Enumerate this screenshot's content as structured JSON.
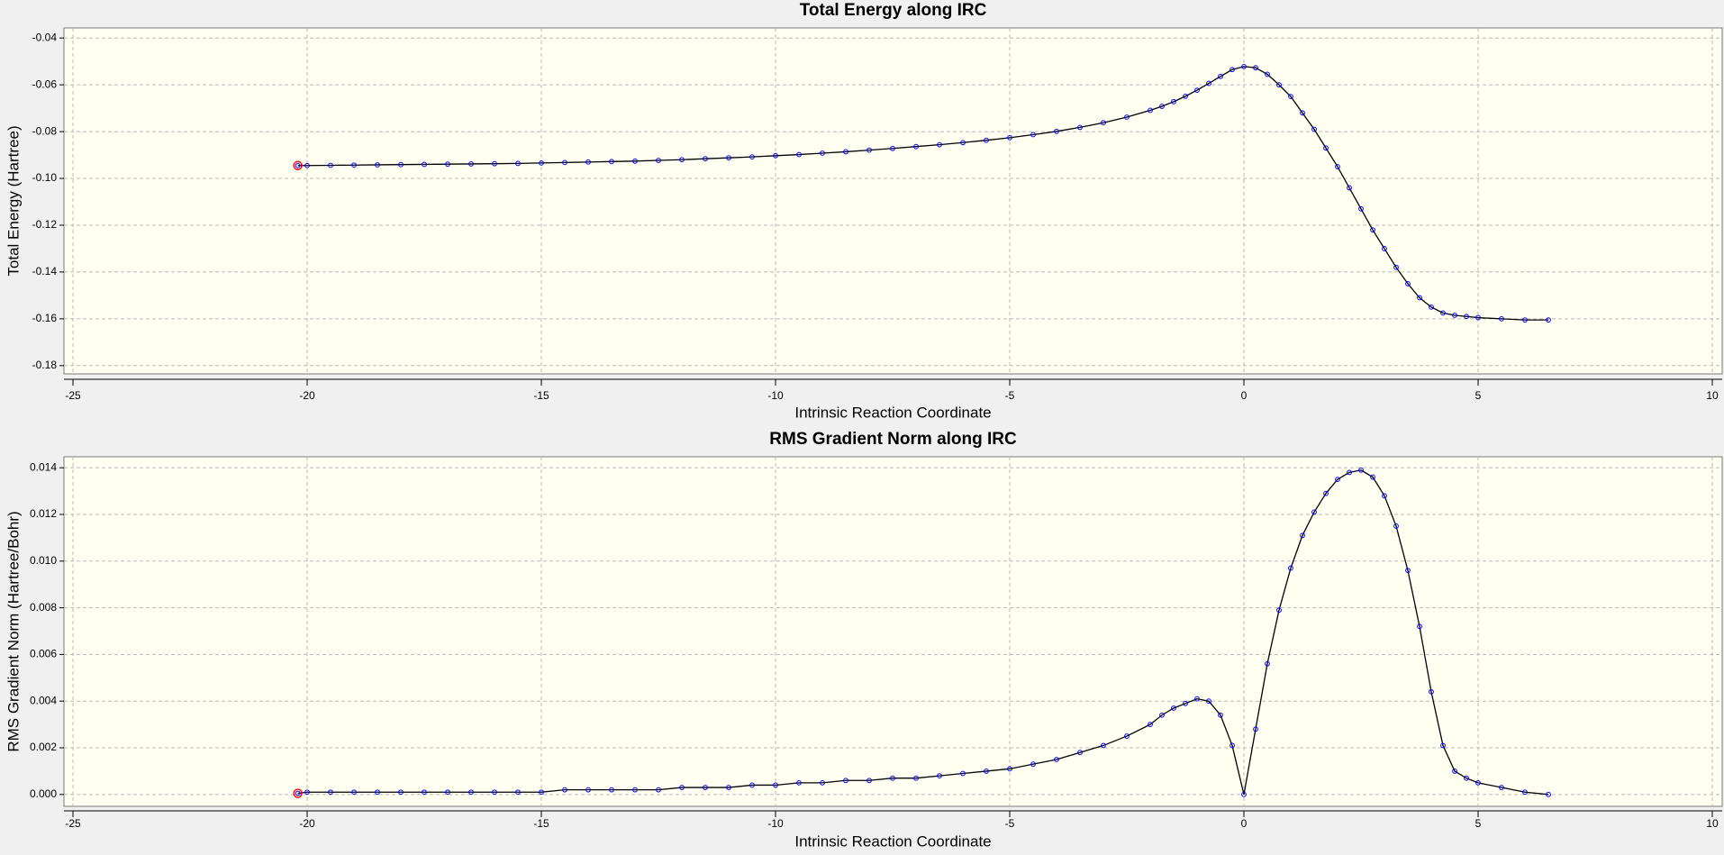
{
  "chart_data": [
    {
      "type": "line",
      "title": "Total Energy along IRC",
      "x_label": "Intrinsic Reaction Coordinate",
      "y_label": "Total Energy (Hartree)",
      "x": [
        -20.2,
        -20,
        -19.5,
        -19,
        -18.5,
        -18,
        -17.5,
        -17,
        -16.5,
        -16,
        -15.5,
        -15,
        -14.5,
        -14,
        -13.5,
        -13,
        -12.5,
        -12,
        -11.5,
        -11,
        -10.5,
        -10,
        -9.5,
        -9,
        -8.5,
        -8,
        -7.5,
        -7,
        -6.5,
        -6,
        -5.5,
        -5,
        -4.5,
        -4,
        -3.5,
        -3,
        -2.5,
        -2,
        -1.75,
        -1.5,
        -1.25,
        -1,
        -0.75,
        -0.5,
        -0.25,
        0,
        0.25,
        0.5,
        0.75,
        1,
        1.25,
        1.5,
        1.75,
        2,
        2.25,
        2.5,
        2.75,
        3,
        3.25,
        3.5,
        3.75,
        4,
        4.25,
        4.5,
        4.75,
        5,
        5.5,
        6,
        6.5
      ],
      "series": [
        {
          "color": "#000000",
          "marker_color": "#0000ff",
          "highlight_color": "#ff0000",
          "values": [
            -0.0945,
            -0.0945,
            -0.0944,
            -0.0943,
            -0.0942,
            -0.0941,
            -0.094,
            -0.0939,
            -0.0938,
            -0.0937,
            -0.0936,
            -0.0934,
            -0.0932,
            -0.093,
            -0.0928,
            -0.0926,
            -0.0923,
            -0.092,
            -0.0916,
            -0.0912,
            -0.0908,
            -0.0903,
            -0.0898,
            -0.0892,
            -0.0886,
            -0.0879,
            -0.0872,
            -0.0864,
            -0.0856,
            -0.0847,
            -0.0837,
            -0.0826,
            -0.0813,
            -0.0799,
            -0.0782,
            -0.0762,
            -0.0738,
            -0.0709,
            -0.0692,
            -0.0672,
            -0.0649,
            -0.0623,
            -0.0594,
            -0.0564,
            -0.0535,
            -0.0522,
            -0.0527,
            -0.0555,
            -0.06,
            -0.065,
            -0.072,
            -0.079,
            -0.087,
            -0.095,
            -0.104,
            -0.113,
            -0.122,
            -0.13,
            -0.138,
            -0.145,
            -0.151,
            -0.155,
            -0.1575,
            -0.1585,
            -0.159,
            -0.1595,
            -0.16,
            -0.1605,
            -0.1605
          ]
        }
      ],
      "xlim": [
        -25,
        10
      ],
      "xticks": [
        -25,
        -20,
        -15,
        -10,
        -5,
        0,
        5,
        10
      ],
      "ylim": [
        -0.182,
        -0.038
      ],
      "yticks": [
        -0.04,
        -0.06,
        -0.08,
        {
          "value": -0.1,
          "label": "-0.10"
        },
        -0.12,
        -0.14,
        -0.16,
        -0.18
      ],
      "grid": true
    },
    {
      "type": "line",
      "title": "RMS Gradient Norm along IRC",
      "x_label": "Intrinsic Reaction Coordinate",
      "y_label": "RMS Gradient Norm (Hartree/Bohr)",
      "x": [
        -20.2,
        -20,
        -19.5,
        -19,
        -18.5,
        -18,
        -17.5,
        -17,
        -16.5,
        -16,
        -15.5,
        -15,
        -14.5,
        -14,
        -13.5,
        -13,
        -12.5,
        -12,
        -11.5,
        -11,
        -10.5,
        -10,
        -9.5,
        -9,
        -8.5,
        -8,
        -7.5,
        -7,
        -6.5,
        -6,
        -5.5,
        -5,
        -4.5,
        -4,
        -3.5,
        -3,
        -2.5,
        -2,
        -1.75,
        -1.5,
        -1.25,
        -1,
        -0.75,
        -0.5,
        -0.25,
        0,
        0.25,
        0.5,
        0.75,
        1,
        1.25,
        1.5,
        1.75,
        2,
        2.25,
        2.5,
        2.75,
        3,
        3.25,
        3.5,
        3.75,
        4,
        4.25,
        4.5,
        4.75,
        5,
        5.5,
        6,
        6.5
      ],
      "series": [
        {
          "color": "#000000",
          "marker_color": "#0000ff",
          "highlight_color": "#ff0000",
          "values": [
            5e-05,
            0.0001,
            0.0001,
            0.0001,
            0.0001,
            0.0001,
            0.0001,
            0.0001,
            0.0001,
            0.0001,
            0.0001,
            0.0001,
            0.0002,
            0.0002,
            0.0002,
            0.0002,
            0.0002,
            0.0003,
            0.0003,
            0.0003,
            0.0004,
            0.0004,
            0.0005,
            0.0005,
            0.0006,
            0.0006,
            0.0007,
            0.0007,
            0.0008,
            0.0009,
            0.001,
            0.0011,
            0.0013,
            0.0015,
            0.0018,
            0.0021,
            0.0025,
            0.003,
            0.0034,
            0.0037,
            0.0039,
            0.0041,
            0.004,
            0.0034,
            0.0021,
            0,
            0.0028,
            0.0056,
            0.0079,
            0.0097,
            0.0111,
            0.0121,
            0.0129,
            0.0135,
            0.0138,
            0.0139,
            0.0136,
            0.0128,
            0.0115,
            0.0096,
            0.0072,
            0.0044,
            0.0021,
            0.001,
            0.0007,
            0.0005,
            0.0003,
            0.0001,
            0
          ]
        }
      ],
      "xlim": [
        -25,
        10
      ],
      "xticks": [
        -25,
        -20,
        -15,
        -10,
        -5,
        0,
        5,
        10
      ],
      "ylim": [
        -0.0002,
        0.0142
      ],
      "yticks": [
        {
          "value": 0,
          "label": "0.000"
        },
        0.002,
        0.004,
        0.006,
        0.008,
        {
          "value": 0.01,
          "label": "0.010"
        },
        0.012,
        0.014
      ],
      "grid": true
    }
  ]
}
